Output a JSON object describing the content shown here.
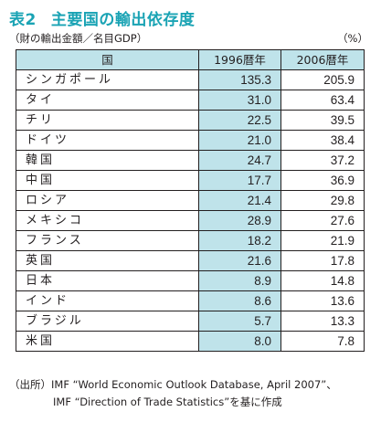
{
  "title": {
    "number": "表2",
    "text": "主要国の輸出依存度"
  },
  "subtitle": "（財の輸出金額／名目GDP）",
  "unit": "（%）",
  "table": {
    "headers": [
      "国",
      "1996暦年",
      "2006暦年"
    ],
    "rows": [
      {
        "country": "シンガポール",
        "v1996": "135.3",
        "v2006": "205.9"
      },
      {
        "country": "タイ",
        "v1996": "31.0",
        "v2006": "63.4"
      },
      {
        "country": "チリ",
        "v1996": "22.5",
        "v2006": "39.5"
      },
      {
        "country": "ドイツ",
        "v1996": "21.0",
        "v2006": "38.4"
      },
      {
        "country": "韓国",
        "v1996": "24.7",
        "v2006": "37.2"
      },
      {
        "country": "中国",
        "v1996": "17.7",
        "v2006": "36.9"
      },
      {
        "country": "ロシア",
        "v1996": "21.4",
        "v2006": "29.8"
      },
      {
        "country": "メキシコ",
        "v1996": "28.9",
        "v2006": "27.6"
      },
      {
        "country": "フランス",
        "v1996": "18.2",
        "v2006": "21.9"
      },
      {
        "country": "英国",
        "v1996": "21.6",
        "v2006": "17.8"
      },
      {
        "country": "日本",
        "v1996": "8.9",
        "v2006": "14.8"
      },
      {
        "country": "インド",
        "v1996": "8.6",
        "v2006": "13.6"
      },
      {
        "country": "ブラジル",
        "v1996": "5.7",
        "v2006": "13.3"
      },
      {
        "country": "米国",
        "v1996": "8.0",
        "v2006": "7.8"
      }
    ]
  },
  "source": {
    "line1": "（出所）IMF “World Economic Outlook Database, April 2007”、",
    "line2": "IMF “Direction of Trade Statistics”を基に作成"
  },
  "colors": {
    "title": "#1aa3b4",
    "header_fill": "#bfe3ea",
    "column_1996_fill": "#bfe3ea",
    "text": "#231f20"
  }
}
